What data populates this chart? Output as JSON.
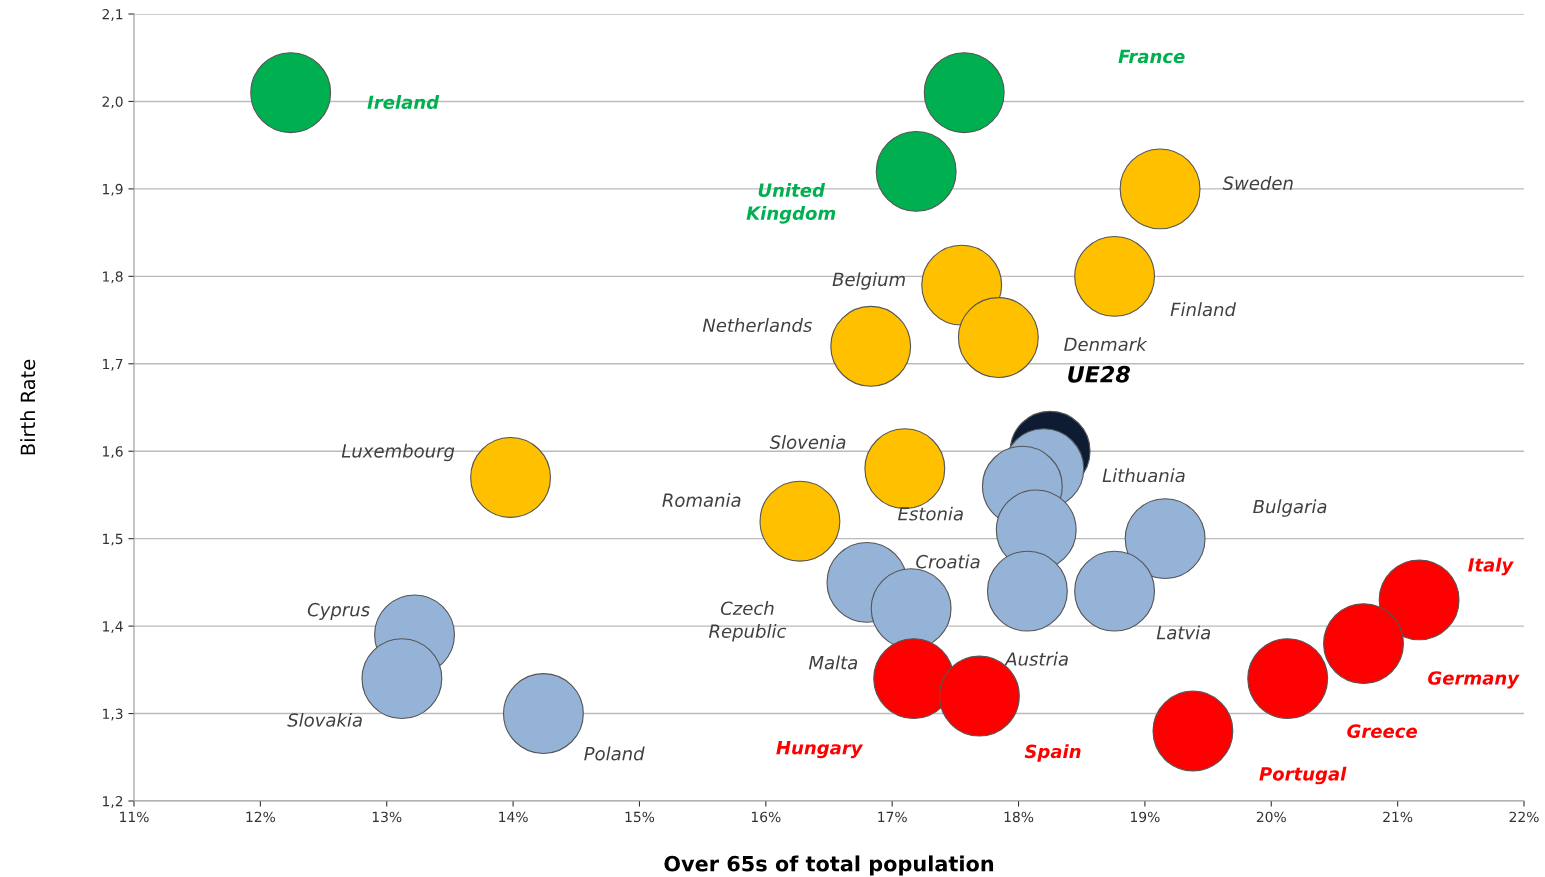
{
  "chart_data": {
    "type": "scatter",
    "xlabel": "Over 65s of total population",
    "ylabel": "Birth Rate",
    "xlim": [
      11,
      22
    ],
    "ylim": [
      1.2,
      2.1
    ],
    "xticks": [
      {
        "value": 11,
        "label": "11%"
      },
      {
        "value": 12,
        "label": "12%"
      },
      {
        "value": 13,
        "label": "13%"
      },
      {
        "value": 14,
        "label": "14%"
      },
      {
        "value": 15,
        "label": "15%"
      },
      {
        "value": 16,
        "label": "16%"
      },
      {
        "value": 17,
        "label": "17%"
      },
      {
        "value": 18,
        "label": "18%"
      },
      {
        "value": 19,
        "label": "19%"
      },
      {
        "value": 20,
        "label": "20%"
      },
      {
        "value": 21,
        "label": "21%"
      },
      {
        "value": 22,
        "label": "22%"
      }
    ],
    "yticks": [
      {
        "value": 1.2,
        "label": "1,2"
      },
      {
        "value": 1.3,
        "label": "1,3"
      },
      {
        "value": 1.4,
        "label": "1,4"
      },
      {
        "value": 1.5,
        "label": "1,5"
      },
      {
        "value": 1.6,
        "label": "1,6"
      },
      {
        "value": 1.7,
        "label": "1,7"
      },
      {
        "value": 1.8,
        "label": "1,8"
      },
      {
        "value": 1.9,
        "label": "1,9"
      },
      {
        "value": 2.0,
        "label": "2,0"
      },
      {
        "value": 2.1,
        "label": "2,1"
      }
    ],
    "grid": "y",
    "marker": "circle",
    "series": [
      {
        "color": "#00b050",
        "x": [
          12.24,
          17.57,
          17.19
        ],
        "values": [
          2.01,
          2.01,
          1.92
        ]
      },
      {
        "color": "#ffc000",
        "x": [
          19.12,
          17.55,
          18.76,
          16.83,
          17.84,
          13.98,
          17.1,
          16.27
        ],
        "values": [
          1.9,
          1.79,
          1.8,
          1.72,
          1.73,
          1.57,
          1.58,
          1.52
        ]
      },
      {
        "color": "#0d1b33",
        "x": [
          18.25
        ],
        "values": [
          1.6
        ]
      },
      {
        "color": "#95b3d7",
        "x": [
          18.2,
          18.03,
          18.14,
          19.16,
          16.8,
          17.15,
          18.07,
          18.76,
          13.22,
          13.12,
          14.24
        ],
        "values": [
          1.58,
          1.56,
          1.51,
          1.5,
          1.45,
          1.42,
          1.44,
          1.44,
          1.39,
          1.34,
          1.3
        ]
      },
      {
        "color": "#ff0000",
        "x": [
          21.17,
          20.73,
          20.13,
          17.17,
          17.69,
          19.38
        ],
        "values": [
          1.43,
          1.38,
          1.34,
          1.34,
          1.32,
          1.28
        ]
      }
    ],
    "annotations": [
      "Ireland",
      "France",
      "United\nKingdom",
      "Sweden",
      "Belgium",
      "Finland",
      "Netherlands",
      "Denmark",
      "UE28",
      "Lithuania",
      "Luxembourg",
      "Slovenia",
      "Estonia",
      "Romania",
      "Croatia",
      "Bulgaria",
      "Czech\nRepublic",
      "Malta",
      "Austria",
      "Latvia",
      "Italy",
      "Germany",
      "Greece",
      "Cyprus",
      "Slovakia",
      "Poland",
      "Hungary",
      "Spain",
      "Portugal"
    ]
  }
}
